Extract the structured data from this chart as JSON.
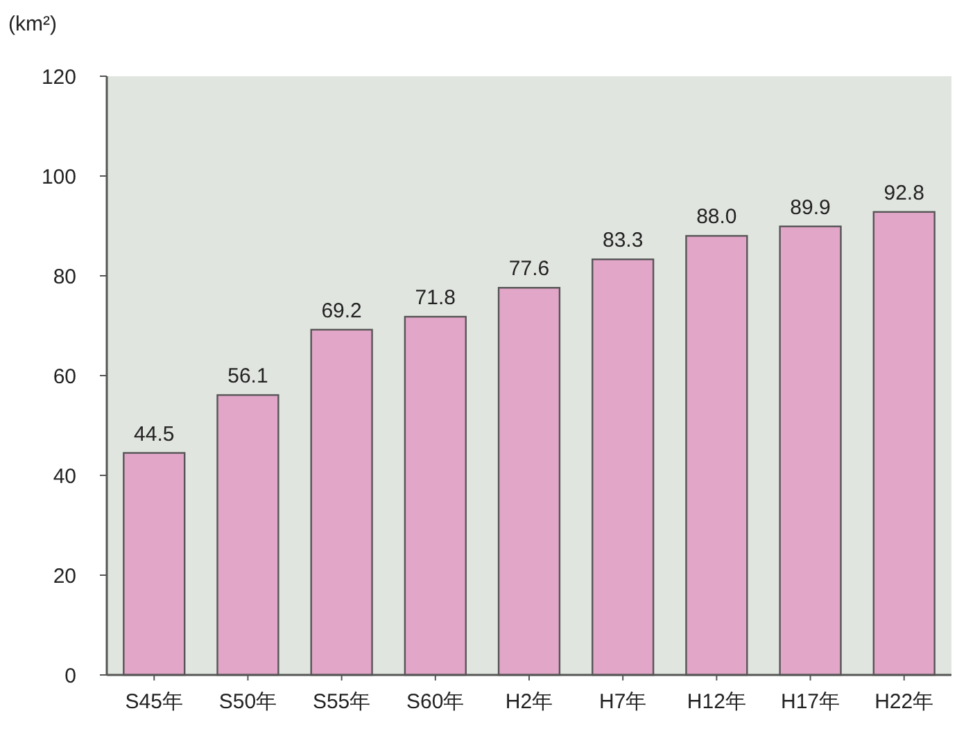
{
  "chart_data": {
    "type": "bar",
    "ylabel": "(km²)",
    "categories": [
      "S45年",
      "S50年",
      "S55年",
      "S60年",
      "H2年",
      "H7年",
      "H12年",
      "H17年",
      "H22年"
    ],
    "values": [
      44.5,
      56.1,
      69.2,
      71.8,
      77.6,
      83.3,
      88.0,
      89.9,
      92.8
    ],
    "value_labels": [
      "44.5",
      "56.1",
      "69.2",
      "71.8",
      "77.6",
      "83.3",
      "88.0",
      "89.9",
      "92.8"
    ],
    "color": "#e2a6c8",
    "ylim": [
      0,
      120
    ],
    "yticks": [
      0,
      20,
      40,
      60,
      80,
      100,
      120
    ],
    "grid": false
  }
}
